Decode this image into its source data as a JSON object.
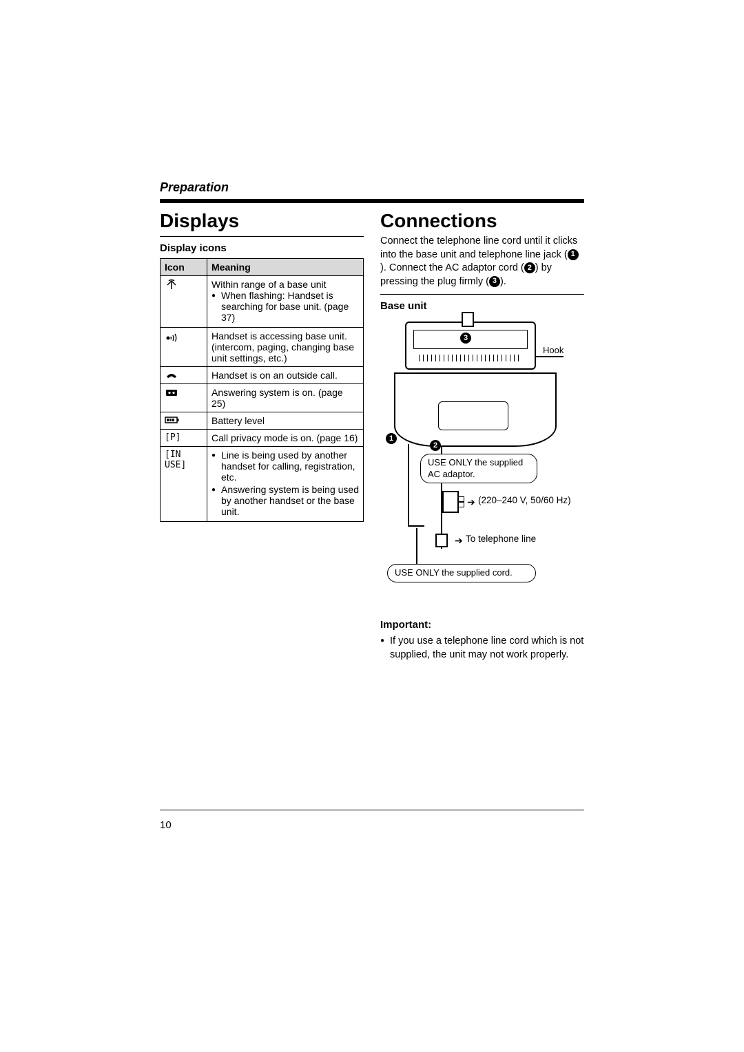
{
  "section": "Preparation",
  "page_number": "10",
  "left": {
    "heading": "Displays",
    "subhead": "Display icons",
    "table": {
      "col_icon": "Icon",
      "col_meaning": "Meaning",
      "rows": [
        {
          "icon_name": "antenna",
          "icon_text": "",
          "meaning_pre": "Within range of a base unit",
          "bullets": [
            "When flashing: Handset is searching for base unit. (page 37)"
          ]
        },
        {
          "icon_name": "access",
          "icon_text": "",
          "meaning_pre": "Handset is accessing base unit. (intercom, paging, changing base unit settings, etc.)",
          "bullets": []
        },
        {
          "icon_name": "offhook",
          "icon_text": "",
          "meaning_pre": "Handset is on an outside call.",
          "bullets": []
        },
        {
          "icon_name": "tape",
          "icon_text": "",
          "meaning_pre": "Answering system is on. (page 25)",
          "bullets": []
        },
        {
          "icon_name": "battery",
          "icon_text": "",
          "meaning_pre": "Battery level",
          "bullets": []
        },
        {
          "icon_name": "privacy",
          "icon_text": "[P]",
          "meaning_pre": "Call privacy mode is on. (page 16)",
          "bullets": []
        },
        {
          "icon_name": "inuse",
          "icon_text": "[IN USE]",
          "meaning_pre": "",
          "bullets": [
            "Line is being used by another handset for calling, registration, etc.",
            "Answering system is being used by another handset or the base unit."
          ]
        }
      ]
    }
  },
  "right": {
    "heading": "Connections",
    "intro_parts": {
      "p1": "Connect the telephone line cord until it clicks into the base unit and telephone line jack (",
      "p2": "). Connect the AC adaptor cord (",
      "p3": ") by pressing the plug firmly (",
      "p4": ")."
    },
    "baseunit_label": "Base unit",
    "diagram": {
      "hook": "Hook",
      "num1": "1",
      "num2": "2",
      "num3": "3",
      "box_ac": "USE ONLY the supplied AC adaptor.",
      "voltage": "(220–240 V, 50/60 Hz)",
      "tel_line": "To telephone line",
      "box_cord": "USE ONLY the supplied cord."
    },
    "important_label": "Important:",
    "important_bullets": [
      "If you use a telephone line cord which is not supplied, the unit may not work properly."
    ]
  },
  "colors": {
    "rule": "#000000",
    "tablehead_bg": "#d9d9d9",
    "text": "#000000",
    "background": "#ffffff"
  }
}
